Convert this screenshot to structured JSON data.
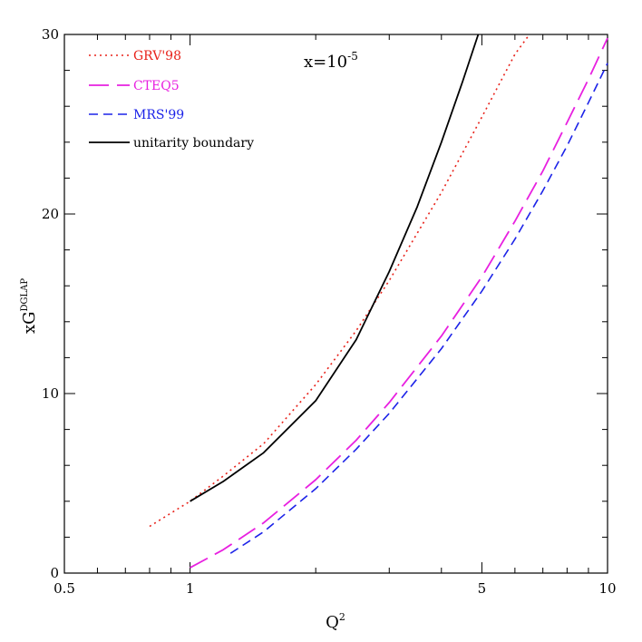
{
  "chart_data": {
    "type": "line",
    "title": "",
    "xlabel": "Q",
    "xlabel_sup": "2",
    "ylabel": "xG",
    "ylabel_sup": "DGLAP",
    "xscale": "log",
    "xlim": [
      0.5,
      10
    ],
    "ylim": [
      0,
      30
    ],
    "x_ticks": [
      0.5,
      1,
      5,
      10
    ],
    "x_tick_labels": [
      "0.5",
      "1",
      "5",
      "10"
    ],
    "y_ticks": [
      0,
      10,
      20,
      30
    ],
    "y_tick_labels": [
      "0",
      "10",
      "20",
      "30"
    ],
    "grid": false,
    "legend_position": "top-left",
    "annotation": {
      "text": "x=10",
      "sup": "-5"
    },
    "series": [
      {
        "name": "GRV'98",
        "color": "#e8221a",
        "style": "dotted",
        "x": [
          0.8,
          1.0,
          1.2,
          1.5,
          2.0,
          2.5,
          3.0,
          4.0,
          5.0,
          6.0,
          6.5
        ],
        "y": [
          2.6,
          4.0,
          5.4,
          7.2,
          10.5,
          13.5,
          16.3,
          21.2,
          25.4,
          28.9,
          30.0
        ]
      },
      {
        "name": "CTEQ5",
        "color": "#e820e0",
        "style": "long-dash",
        "x": [
          1.0,
          1.2,
          1.5,
          2.0,
          2.5,
          3.0,
          4.0,
          5.0,
          6.0,
          7.0,
          8.0,
          9.0,
          10.0
        ],
        "y": [
          0.3,
          1.3,
          2.8,
          5.2,
          7.4,
          9.5,
          13.2,
          16.5,
          19.6,
          22.4,
          25.1,
          27.5,
          29.8
        ]
      },
      {
        "name": "MRS'99",
        "color": "#1c23e8",
        "style": "dashed",
        "x": [
          1.25,
          1.5,
          2.0,
          2.5,
          3.0,
          4.0,
          5.0,
          6.0,
          7.0,
          8.0,
          9.0,
          10.0
        ],
        "y": [
          1.1,
          2.3,
          4.7,
          6.9,
          8.9,
          12.5,
          15.7,
          18.6,
          21.3,
          23.8,
          26.2,
          28.4
        ]
      },
      {
        "name": "unitarity boundary",
        "color": "#000000",
        "style": "solid",
        "x": [
          1.0,
          1.2,
          1.5,
          2.0,
          2.5,
          3.0,
          3.5,
          4.0,
          4.5,
          4.9
        ],
        "y": [
          4.0,
          5.1,
          6.7,
          9.6,
          13.0,
          16.8,
          20.4,
          24.0,
          27.4,
          30.0
        ]
      }
    ]
  }
}
